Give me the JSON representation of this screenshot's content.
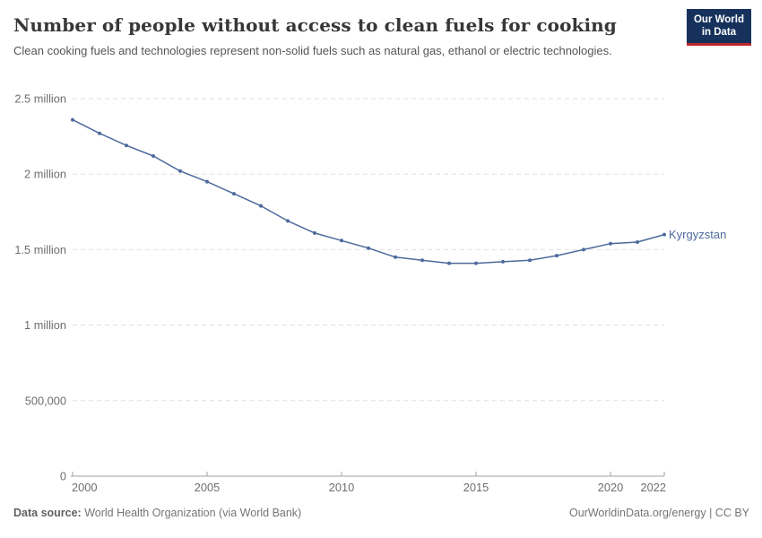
{
  "header": {
    "title": "Number of people without access to clean fuels for cooking",
    "subtitle": "Clean cooking fuels and technologies represent non-solid fuels such as natural gas, ethanol or electric technologies."
  },
  "logo": {
    "line1": "Our World",
    "line2": "in Data",
    "bg_color": "#16325c",
    "accent_color": "#c0262d"
  },
  "footer": {
    "source_label": "Data source:",
    "source_value": "World Health Organization (via World Bank)",
    "credit": "OurWorldinData.org/energy | CC BY"
  },
  "chart_data": {
    "type": "line",
    "title": "Number of people without access to clean fuels for cooking",
    "x": [
      2000,
      2001,
      2002,
      2003,
      2004,
      2005,
      2006,
      2007,
      2008,
      2009,
      2010,
      2011,
      2012,
      2013,
      2014,
      2015,
      2016,
      2017,
      2018,
      2019,
      2020,
      2021,
      2022
    ],
    "series": [
      {
        "name": "Kyrgyzstan",
        "color": "#4c6a9c",
        "values": [
          2360000,
          2270000,
          2190000,
          2120000,
          2020000,
          1950000,
          1870000,
          1790000,
          1690000,
          1610000,
          1560000,
          1510000,
          1450000,
          1430000,
          1410000,
          1410000,
          1420000,
          1430000,
          1460000,
          1500000,
          1540000,
          1550000,
          1600000
        ]
      }
    ],
    "xlim": [
      2000,
      2022
    ],
    "ylim": [
      0,
      2500000
    ],
    "xticks": [
      2000,
      2005,
      2010,
      2015,
      2020,
      2022
    ],
    "yticks": {
      "values": [
        0,
        500000,
        1000000,
        1500000,
        2000000,
        2500000
      ],
      "labels": [
        "0",
        "500,000",
        "1 million",
        "1.5 million",
        "2 million",
        "2.5 million"
      ]
    },
    "grid": "horizontal-dashed",
    "legend_position": "end-of-line-label",
    "entity_label": "Kyrgyzstan"
  }
}
